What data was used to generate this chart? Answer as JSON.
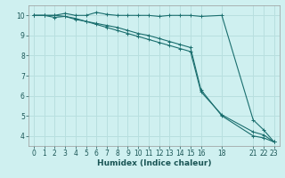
{
  "xlabel": "Humidex (Indice chaleur)",
  "ylabel": "",
  "background_color": "#cff0f0",
  "grid_color": "#b8dfdf",
  "line_color": "#1a6e6e",
  "xlim": [
    -0.5,
    23.5
  ],
  "ylim": [
    3.5,
    10.5
  ],
  "yticks": [
    4,
    5,
    6,
    7,
    8,
    9,
    10
  ],
  "xticks": [
    0,
    1,
    2,
    3,
    4,
    5,
    6,
    7,
    8,
    9,
    10,
    11,
    12,
    13,
    14,
    15,
    16,
    18,
    21,
    22,
    23
  ],
  "line1_x": [
    0,
    1,
    2,
    3,
    4,
    5,
    6,
    7,
    8,
    9,
    10,
    11,
    12,
    13,
    14,
    15,
    16,
    18,
    21,
    22,
    23
  ],
  "line1_y": [
    10,
    10,
    10,
    10.1,
    10,
    10,
    10.15,
    10.05,
    10,
    10,
    10,
    10,
    9.95,
    10,
    10,
    10,
    9.95,
    10,
    4.8,
    4.3,
    3.7
  ],
  "line2_x": [
    0,
    1,
    2,
    3,
    4,
    5,
    6,
    7,
    8,
    9,
    10,
    11,
    12,
    13,
    14,
    15,
    16,
    18,
    21,
    22,
    23
  ],
  "line2_y": [
    10,
    10,
    9.9,
    9.95,
    9.8,
    9.7,
    9.6,
    9.5,
    9.4,
    9.25,
    9.1,
    9.0,
    8.85,
    8.7,
    8.55,
    8.4,
    6.3,
    5.0,
    4.0,
    3.9,
    3.7
  ],
  "line3_x": [
    0,
    1,
    2,
    3,
    4,
    5,
    6,
    7,
    8,
    9,
    10,
    11,
    12,
    13,
    14,
    15,
    16,
    18,
    21,
    22,
    23
  ],
  "line3_y": [
    10,
    10,
    10,
    9.95,
    9.85,
    9.7,
    9.55,
    9.4,
    9.25,
    9.1,
    8.95,
    8.8,
    8.65,
    8.5,
    8.35,
    8.2,
    6.2,
    5.05,
    4.2,
    4.05,
    3.7
  ],
  "tick_fontsize": 5.5,
  "xlabel_fontsize": 6.5
}
